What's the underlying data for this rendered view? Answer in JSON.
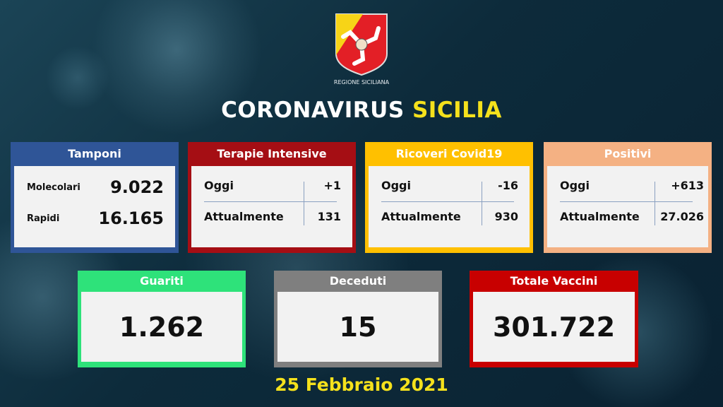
{
  "logo": {
    "caption": "REGIONE SICILIANA",
    "colors": [
      "#e31f26",
      "#f7d417"
    ]
  },
  "title": {
    "part1": "CORONAVIRUS",
    "part2": "SICILIA"
  },
  "tamponi": {
    "title": "Tamponi",
    "color": "#2f5597",
    "rows": [
      {
        "label": "Molecolari",
        "value": "9.022"
      },
      {
        "label": "Rapidi",
        "value": "16.165"
      }
    ]
  },
  "terapie": {
    "title": "Terapie Intensive",
    "color": "#a50e14",
    "oggi_label": "Oggi",
    "oggi": "+1",
    "att_label": "Attualmente",
    "att": "131"
  },
  "ricoveri": {
    "title": "Ricoveri Covid19",
    "color": "#ffc000",
    "oggi_label": "Oggi",
    "oggi": "-16",
    "att_label": "Attualmente",
    "att": "930"
  },
  "positivi": {
    "title": "Positivi",
    "color": "#f4b183",
    "oggi_label": "Oggi",
    "oggi": "+613",
    "att_label": "Attualmente",
    "att": "27.026"
  },
  "guariti": {
    "title": "Guariti",
    "value": "1.262",
    "color": "#2ee27a"
  },
  "deceduti": {
    "title": "Deceduti",
    "value": "15",
    "color": "#7f7f7f"
  },
  "vaccini": {
    "title": "Totale Vaccini",
    "value": "301.722",
    "color": "#c80000"
  },
  "date": "25 Febbraio 2021"
}
